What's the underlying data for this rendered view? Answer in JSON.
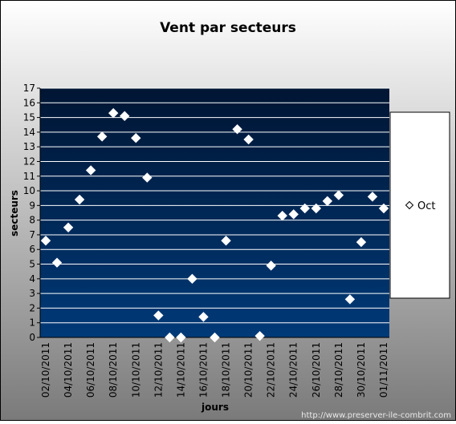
{
  "chart_data": {
    "type": "scatter",
    "title": "Vent par secteurs",
    "xlabel": "jours",
    "ylabel": "secteurs",
    "categories": [
      "02/10/2011",
      null,
      "04/10/2011",
      null,
      "06/10/2011",
      null,
      "08/10/2011",
      null,
      "10/10/2011",
      null,
      "12/10/2011",
      null,
      "14/10/2011",
      null,
      "16/10/2011",
      null,
      "18/10/2011",
      null,
      "20/10/2011",
      null,
      "22/10/2011",
      null,
      "24/10/2011",
      null,
      "26/10/2011",
      null,
      "28/10/2011",
      null,
      "30/10/2011",
      null,
      "01/11/2011"
    ],
    "series": [
      {
        "name": "Oct",
        "color": "#ffffff",
        "values": [
          6.6,
          5.1,
          7.5,
          9.4,
          11.4,
          13.7,
          15.3,
          15.1,
          13.6,
          10.9,
          1.5,
          0,
          0,
          4.0,
          1.4,
          0,
          6.6,
          14.2,
          13.5,
          0.1,
          4.9,
          8.3,
          8.4,
          8.8,
          8.8,
          9.3,
          9.7,
          2.6,
          6.5,
          9.6,
          8.8
        ]
      }
    ],
    "ylim": [
      0,
      17
    ],
    "yticks": [
      0,
      1,
      2,
      3,
      4,
      5,
      6,
      7,
      8,
      9,
      10,
      11,
      12,
      13,
      14,
      15,
      16,
      17
    ],
    "grid": true,
    "legend": "right",
    "footer": "http://www.preserver-ile-combrit.com"
  }
}
